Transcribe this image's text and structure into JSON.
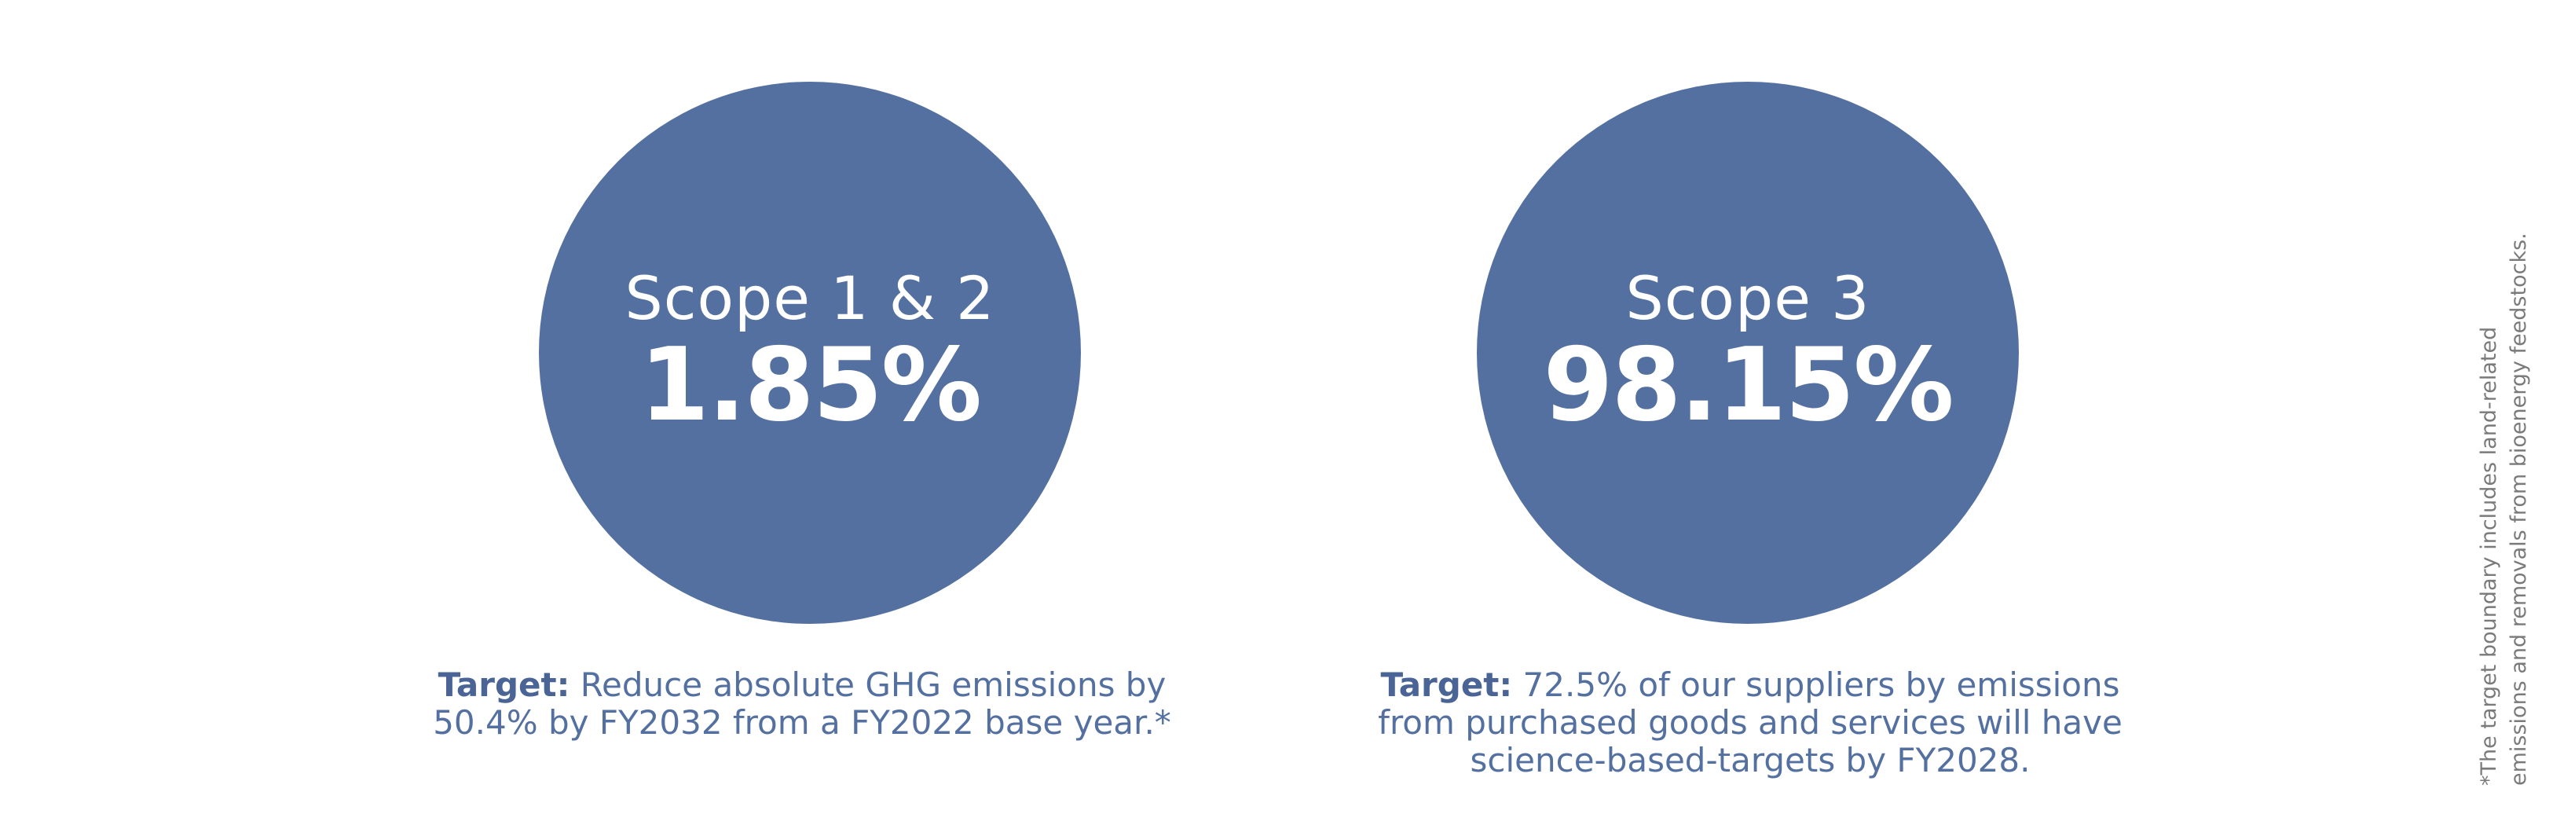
{
  "scope_12": {
    "label": "Scope 1 & 2",
    "value": "1.85%",
    "target_key": "Target:",
    "target_line1": "Reduce absolute GHG emissions by",
    "target_line2": "50.4% by FY2032 from a FY2022 base year.*"
  },
  "scope_3": {
    "label": "Scope 3",
    "value": "98.15%",
    "target_key": "Target:",
    "target_line1": "72.5% of our suppliers by emissions",
    "target_line2": "from purchased goods and services will have",
    "target_line3": "science-based-targets by FY2028."
  },
  "footnote": {
    "line1": "*The target boundary includes land-related",
    "line2": "emissions and removals from bioenergy feedstocks."
  },
  "colors": {
    "circle_fill": "#5470a0",
    "text_accent": "#4a6496",
    "footnote_text": "#7a7a7a"
  }
}
